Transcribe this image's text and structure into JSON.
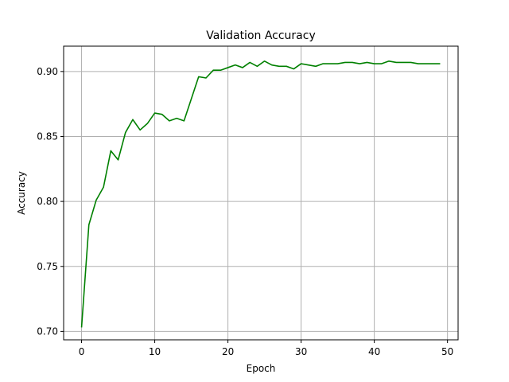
{
  "chart_data": {
    "type": "line",
    "title": "Validation Accuracy",
    "xlabel": "Epoch",
    "ylabel": "Accuracy",
    "xlim": [
      -2.45,
      51.45
    ],
    "ylim": [
      0.6935,
      0.9195
    ],
    "xticks": [
      0,
      10,
      20,
      30,
      40,
      50
    ],
    "yticks": [
      0.7,
      0.75,
      0.8,
      0.85,
      0.9
    ],
    "xtick_labels": [
      "0",
      "10",
      "20",
      "30",
      "40",
      "50"
    ],
    "ytick_labels": [
      "0.70",
      "0.75",
      "0.80",
      "0.85",
      "0.90"
    ],
    "grid": true,
    "legend": "none",
    "series": [
      {
        "color": "#008000",
        "x": [
          0,
          1,
          2,
          3,
          4,
          5,
          6,
          7,
          8,
          9,
          10,
          11,
          12,
          13,
          14,
          15,
          16,
          17,
          18,
          19,
          20,
          21,
          22,
          23,
          24,
          25,
          26,
          27,
          28,
          29,
          30,
          31,
          32,
          33,
          34,
          35,
          36,
          37,
          38,
          39,
          40,
          41,
          42,
          43,
          44,
          45,
          46,
          47,
          48,
          49
        ],
        "y": [
          0.703,
          0.782,
          0.801,
          0.811,
          0.839,
          0.832,
          0.853,
          0.863,
          0.855,
          0.86,
          0.868,
          0.867,
          0.862,
          0.864,
          0.862,
          0.879,
          0.896,
          0.895,
          0.901,
          0.901,
          0.903,
          0.905,
          0.903,
          0.907,
          0.904,
          0.908,
          0.905,
          0.904,
          0.904,
          0.902,
          0.906,
          0.905,
          0.904,
          0.906,
          0.906,
          0.906,
          0.907,
          0.907,
          0.906,
          0.907,
          0.906,
          0.906,
          0.908,
          0.907,
          0.907,
          0.907,
          0.906,
          0.906,
          0.906,
          0.906
        ]
      }
    ]
  }
}
